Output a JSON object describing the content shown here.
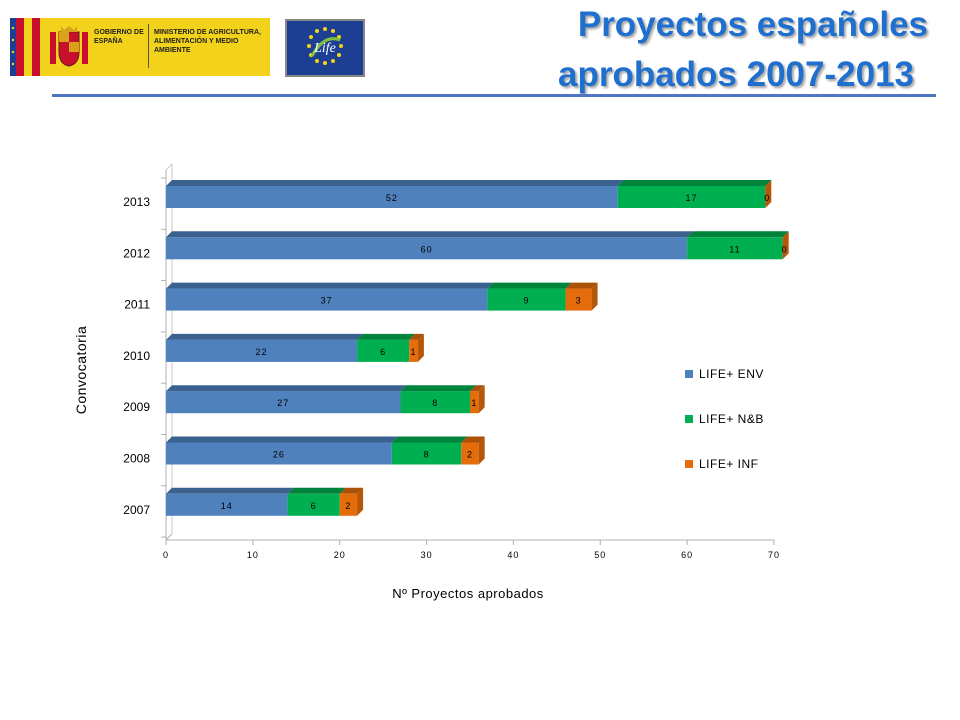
{
  "header": {
    "title_line1": "Proyectos españoles",
    "title_line2": "aprobados 2007-2013",
    "gov_logo_text1": "GOBIERNO DE ESPAÑA",
    "gov_logo_text2": "MINISTERIO DE AGRICULTURA, ALIMENTACIÓN Y MEDIO AMBIENTE",
    "life_logo_text": "Life"
  },
  "colors": {
    "title": "#1f6fcf",
    "env": "#4f81bd",
    "nb": "#00b050",
    "inf": "#e46c0a",
    "gov_yellow": "#f2d21a",
    "eu_blue": "#1c3f94"
  },
  "chart_data": {
    "type": "bar",
    "orientation": "horizontal",
    "stacked": true,
    "categories": [
      "2013",
      "2012",
      "2011",
      "2010",
      "2009",
      "2008",
      "2007"
    ],
    "series": [
      {
        "name": "LIFE+ ENV",
        "values": [
          52,
          60,
          37,
          22,
          27,
          26,
          14
        ]
      },
      {
        "name": "LIFE+ N&B",
        "values": [
          17,
          11,
          9,
          6,
          8,
          8,
          6
        ]
      },
      {
        "name": "LIFE+ INF",
        "values": [
          0,
          0,
          3,
          1,
          1,
          2,
          2
        ]
      }
    ],
    "xlabel": "Nº Proyectos aprobados",
    "ylabel": "Convocatoria",
    "xlim": [
      0,
      70
    ],
    "xticks": [
      0,
      10,
      20,
      30,
      40,
      50,
      60,
      70
    ],
    "grid": false,
    "legend_position": "right"
  }
}
